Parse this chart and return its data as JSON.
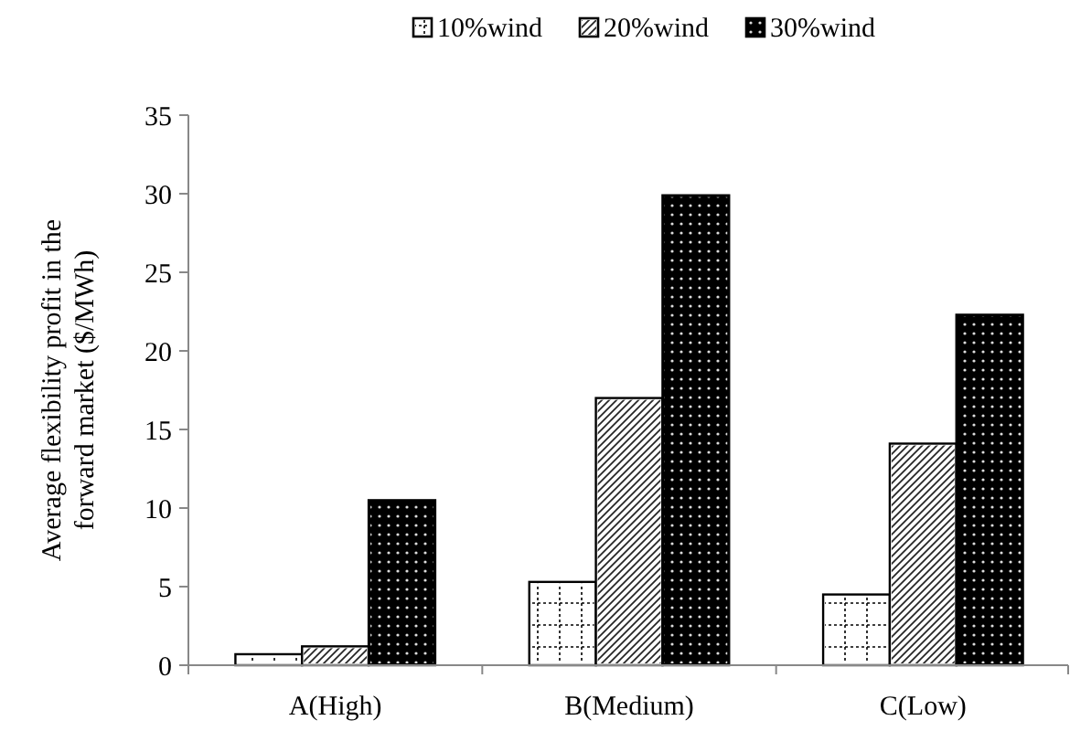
{
  "chart_data": {
    "type": "bar",
    "ylabel": "Average flexibility profit in the forward market ($/MWh)",
    "categories": [
      "A(High)",
      "B(Medium)",
      "C(Low)"
    ],
    "series": [
      {
        "name": "10%wind",
        "color": "#ffffff",
        "values": [
          0.7,
          5.3,
          4.5
        ]
      },
      {
        "name": "20%wind",
        "color": "#ffffff",
        "values": [
          1.2,
          17.0,
          14.1
        ]
      },
      {
        "name": "30%wind",
        "color": "#000000",
        "values": [
          10.5,
          29.9,
          22.3
        ]
      }
    ],
    "ylim": [
      0,
      35
    ],
    "yticks": [
      0,
      5,
      10,
      15,
      20,
      25,
      30,
      35
    ],
    "legend": "top",
    "grid": false
  }
}
